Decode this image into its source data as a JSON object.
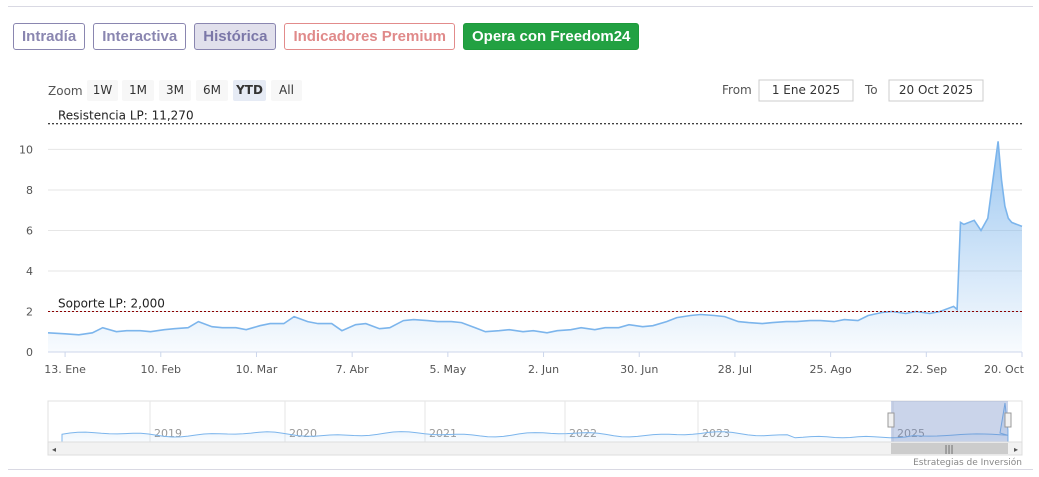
{
  "tabs": [
    {
      "label": "Intradía",
      "style": "outline"
    },
    {
      "label": "Interactiva",
      "style": "outline"
    },
    {
      "label": "Histórica",
      "style": "active"
    },
    {
      "label": "Indicadores Premium",
      "style": "premium"
    },
    {
      "label": "Opera con Freedom24",
      "style": "cta"
    }
  ],
  "range_selector": {
    "zoom_label": "Zoom",
    "buttons": [
      "1W",
      "1M",
      "3M",
      "6M",
      "YTD",
      "All"
    ],
    "selected": "YTD",
    "from_label": "From",
    "from_value": "1 Ene 2025",
    "to_label": "To",
    "to_value": "20 Oct 2025"
  },
  "credit": "Estrategias de Inversión",
  "colors": {
    "line": "#7cb5ec",
    "resistance": "#000000",
    "support": "#8b0000",
    "cta": "#22a142",
    "tab_outline": "#8a86b0",
    "premium": "#e08a8a"
  },
  "chart_data": {
    "type": "area",
    "x_range": [
      "2025-01-08",
      "2025-10-20"
    ],
    "x_ticks": [
      "13. Ene",
      "10. Feb",
      "10. Mar",
      "7. Abr",
      "5. May",
      "2. Jun",
      "30. Jun",
      "28. Jul",
      "25. Ago",
      "22. Sep",
      "20. Oct"
    ],
    "x_tick_dates": [
      "2025-01-13",
      "2025-02-10",
      "2025-03-10",
      "2025-04-07",
      "2025-05-05",
      "2025-06-02",
      "2025-06-30",
      "2025-07-28",
      "2025-08-25",
      "2025-09-22",
      "2025-10-20"
    ],
    "y_ticks": [
      0,
      2,
      4,
      6,
      8,
      10
    ],
    "ylim": [
      0,
      11.7
    ],
    "grid": true,
    "legend": false,
    "series": [
      {
        "x": [
          "2025-01-08",
          "2025-01-13",
          "2025-01-17",
          "2025-01-21",
          "2025-01-24",
          "2025-01-28",
          "2025-01-31",
          "2025-02-04",
          "2025-02-07",
          "2025-02-11",
          "2025-02-14",
          "2025-02-18",
          "2025-02-21",
          "2025-02-25",
          "2025-02-28",
          "2025-03-04",
          "2025-03-07",
          "2025-03-11",
          "2025-03-14",
          "2025-03-18",
          "2025-03-21",
          "2025-03-25",
          "2025-03-28",
          "2025-04-01",
          "2025-04-04",
          "2025-04-08",
          "2025-04-11",
          "2025-04-15",
          "2025-04-18",
          "2025-04-22",
          "2025-04-25",
          "2025-04-29",
          "2025-05-02",
          "2025-05-06",
          "2025-05-09",
          "2025-05-13",
          "2025-05-16",
          "2025-05-20",
          "2025-05-23",
          "2025-05-27",
          "2025-05-30",
          "2025-06-03",
          "2025-06-06",
          "2025-06-10",
          "2025-06-13",
          "2025-06-17",
          "2025-06-20",
          "2025-06-24",
          "2025-06-27",
          "2025-07-01",
          "2025-07-04",
          "2025-07-08",
          "2025-07-11",
          "2025-07-15",
          "2025-07-18",
          "2025-07-22",
          "2025-07-25",
          "2025-07-29",
          "2025-08-01",
          "2025-08-05",
          "2025-08-08",
          "2025-08-12",
          "2025-08-15",
          "2025-08-19",
          "2025-08-22",
          "2025-08-26",
          "2025-08-29",
          "2025-09-02",
          "2025-09-05",
          "2025-09-09",
          "2025-09-12",
          "2025-09-16",
          "2025-09-19",
          "2025-09-23",
          "2025-09-26",
          "2025-09-30",
          "2025-10-01",
          "2025-10-02",
          "2025-10-03",
          "2025-10-06",
          "2025-10-08",
          "2025-10-10",
          "2025-10-13",
          "2025-10-14",
          "2025-10-15",
          "2025-10-16",
          "2025-10-17",
          "2025-10-20"
        ],
        "values": [
          0.95,
          0.9,
          0.85,
          0.95,
          1.2,
          1.0,
          1.05,
          1.05,
          1.0,
          1.1,
          1.15,
          1.2,
          1.5,
          1.25,
          1.2,
          1.2,
          1.1,
          1.3,
          1.4,
          1.4,
          1.75,
          1.5,
          1.4,
          1.4,
          1.05,
          1.35,
          1.4,
          1.15,
          1.2,
          1.55,
          1.6,
          1.55,
          1.5,
          1.5,
          1.45,
          1.2,
          1.0,
          1.05,
          1.1,
          1.0,
          1.05,
          0.95,
          1.05,
          1.1,
          1.2,
          1.1,
          1.2,
          1.2,
          1.35,
          1.25,
          1.3,
          1.5,
          1.7,
          1.8,
          1.85,
          1.8,
          1.75,
          1.5,
          1.45,
          1.4,
          1.45,
          1.5,
          1.5,
          1.55,
          1.55,
          1.5,
          1.6,
          1.55,
          1.8,
          1.95,
          2.0,
          1.9,
          2.0,
          1.9,
          2.0,
          2.25,
          2.1,
          6.4,
          6.3,
          6.5,
          6.0,
          6.6,
          10.4,
          8.5,
          7.2,
          6.6,
          6.4,
          6.2
        ]
      }
    ],
    "plot_lines": [
      {
        "label": "Resistencia LP: 11,270",
        "value": 11.27,
        "style": "dashed"
      },
      {
        "label": "Soporte LP: 2,000",
        "value": 2.0,
        "style": "dashed"
      }
    ],
    "navigator": {
      "x_labels": [
        "2019",
        "2020",
        "2021",
        "2022",
        "2023",
        "2025"
      ],
      "selected_range": "YTD"
    }
  }
}
